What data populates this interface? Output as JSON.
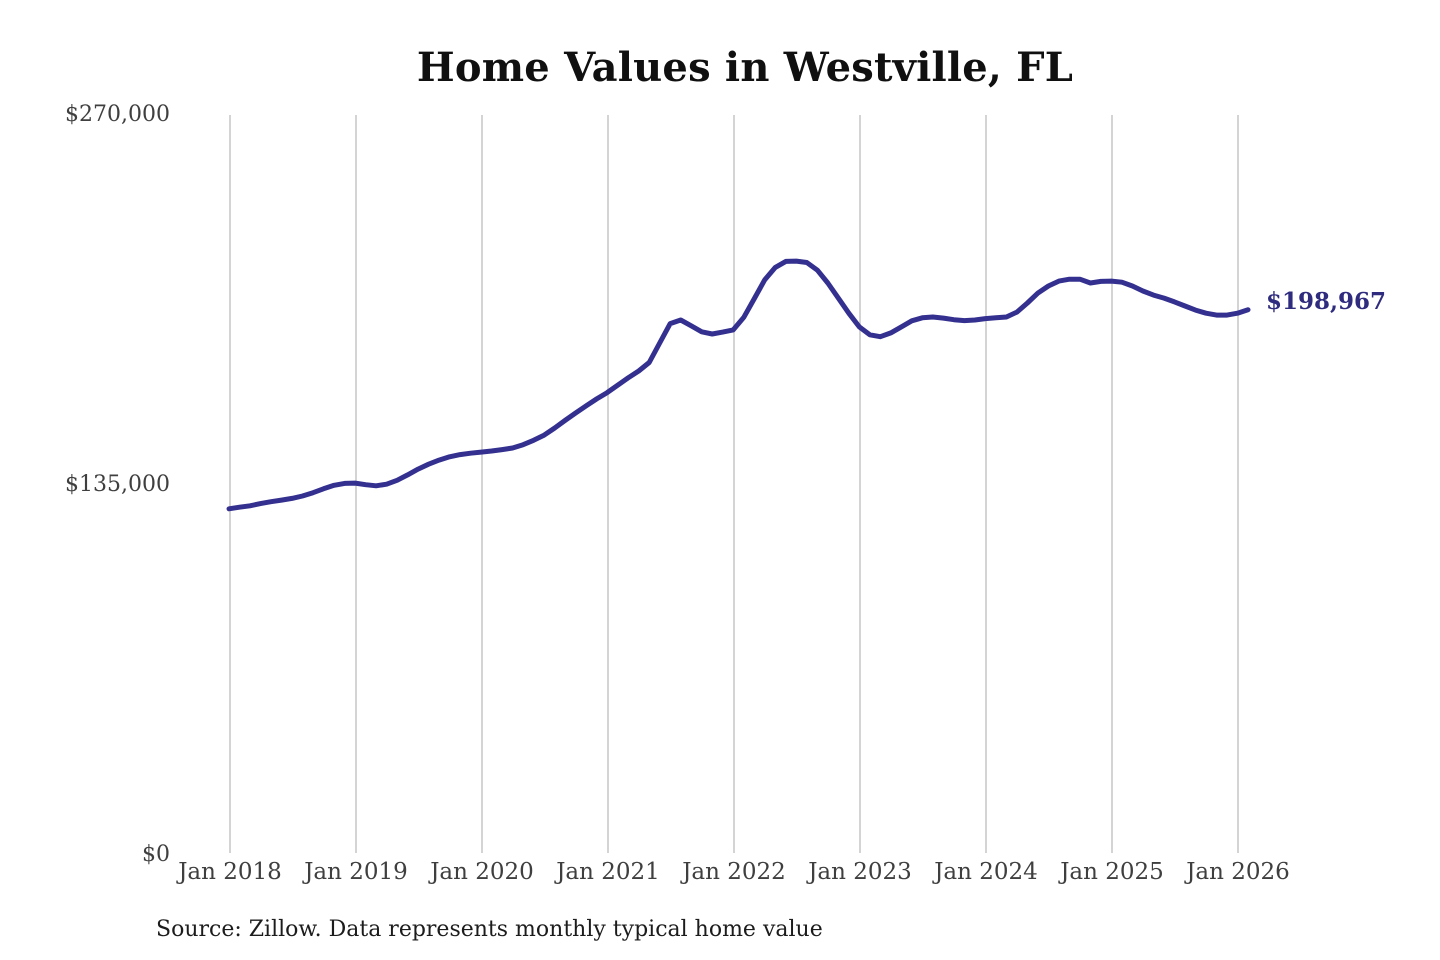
{
  "colors": {
    "background": "#ffffff",
    "line": "#34308f",
    "annotation": "#2f2b7e",
    "gridline": "#c9c9c9",
    "axis_text": "#3f3f3f",
    "title_text": "#101010",
    "source_text": "#1c1c1c"
  },
  "chart_data": {
    "type": "line",
    "title": "Home Values in Westville, FL",
    "xlabel": "",
    "ylabel": "",
    "ylim": [
      0,
      270000
    ],
    "grid": "vertical",
    "legend": "none",
    "x_tick_labels": [
      "Jan 2018",
      "Jan 2019",
      "Jan 2020",
      "Jan 2021",
      "Jan 2022",
      "Jan 2023",
      "Jan 2024",
      "Jan 2025",
      "Jan 2026"
    ],
    "y_ticks": [
      {
        "label": "$0",
        "value": 0
      },
      {
        "label": "$135,000",
        "value": 135000
      },
      {
        "label": "$270,000",
        "value": 270000
      }
    ],
    "series": [
      {
        "name": "Monthly typical home value",
        "start": "Jan 2018",
        "end": "Feb 2026",
        "frequency": "monthly",
        "values": [
          126300,
          126900,
          127400,
          128200,
          128900,
          129500,
          130100,
          131000,
          132200,
          133600,
          134900,
          135600,
          135700,
          135100,
          134700,
          135300,
          136700,
          138700,
          140800,
          142600,
          144100,
          145300,
          146100,
          146600,
          147000,
          147400,
          147900,
          148500,
          149700,
          151300,
          153200,
          155800,
          158600,
          161300,
          163900,
          166400,
          168700,
          171400,
          174100,
          176600,
          179700,
          186800,
          193900,
          195200,
          193100,
          190900,
          190100,
          190800,
          191600,
          196200,
          203000,
          209900,
          214400,
          216600,
          216700,
          216200,
          213400,
          208700,
          203200,
          197700,
          192700,
          189800,
          189100,
          190500,
          192700,
          194900,
          196000,
          196300,
          195900,
          195300,
          195000,
          195200,
          195700,
          196000,
          196300,
          198100,
          201400,
          205000,
          207600,
          209400,
          210100,
          210100,
          208700,
          209300,
          209400,
          209000,
          207600,
          205800,
          204300,
          203200,
          201800,
          200300,
          198800,
          197700,
          197000,
          197000,
          197700,
          198967
        ]
      }
    ],
    "final_value": 198967,
    "final_value_label": "$198,967",
    "source": "Source: Zillow. Data represents monthly typical home value"
  }
}
